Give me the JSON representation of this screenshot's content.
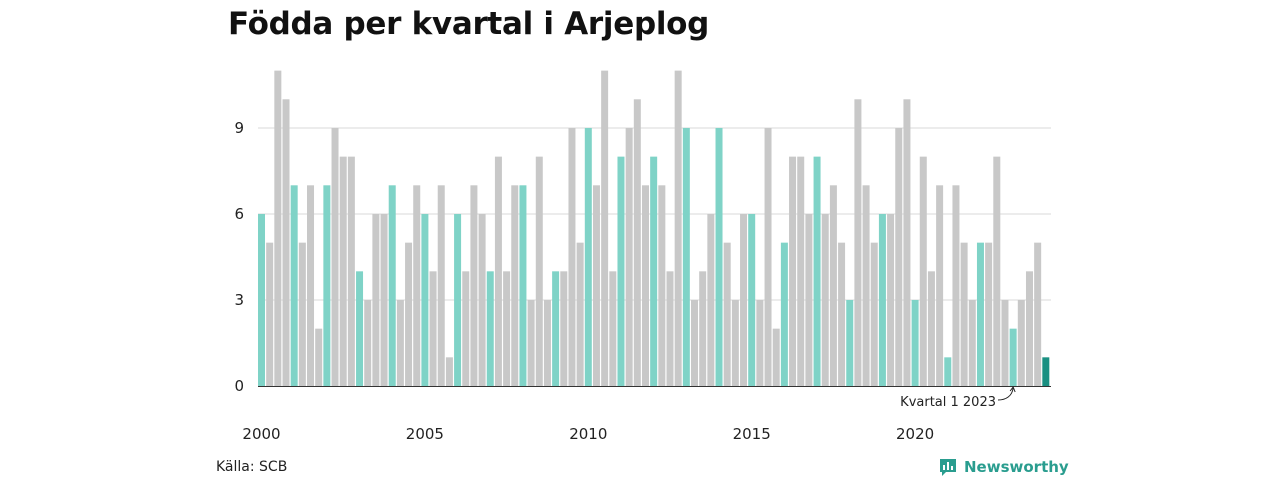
{
  "title": "Födda per kvartal i Arjeplog",
  "source": "Källa: SCB",
  "brand": "Newsworthy",
  "colors": {
    "q1": "#7fd3c7",
    "other": "#c8c8c8",
    "latest": "#1a9082",
    "grid": "#d9d9d9",
    "brand": "#2a9d8f"
  },
  "chart_data": {
    "type": "bar",
    "title": "Födda per kvartal i Arjeplog",
    "xlabel": "",
    "ylabel": "",
    "ylim": [
      0,
      11
    ],
    "yticks": [
      0,
      3,
      6,
      9
    ],
    "xticks": [
      "2000",
      "2005",
      "2010",
      "2015",
      "2020"
    ],
    "grid": true,
    "start_year": 2000,
    "annotation": "Kvartal 1 2023",
    "values": [
      6,
      5,
      11,
      10,
      7,
      5,
      7,
      2,
      7,
      9,
      8,
      8,
      4,
      3,
      6,
      6,
      7,
      3,
      5,
      7,
      6,
      4,
      7,
      1,
      6,
      4,
      7,
      6,
      4,
      8,
      4,
      7,
      7,
      3,
      8,
      3,
      4,
      4,
      9,
      5,
      9,
      7,
      11,
      4,
      8,
      9,
      10,
      7,
      8,
      7,
      4,
      11,
      9,
      3,
      4,
      6,
      9,
      5,
      3,
      6,
      6,
      3,
      9,
      2,
      5,
      8,
      8,
      6,
      8,
      6,
      7,
      5,
      3,
      10,
      7,
      5,
      6,
      6,
      9,
      10,
      3,
      8,
      4,
      7,
      1,
      7,
      5,
      3,
      5,
      5,
      8,
      3,
      2,
      3,
      4,
      5,
      1
    ]
  }
}
